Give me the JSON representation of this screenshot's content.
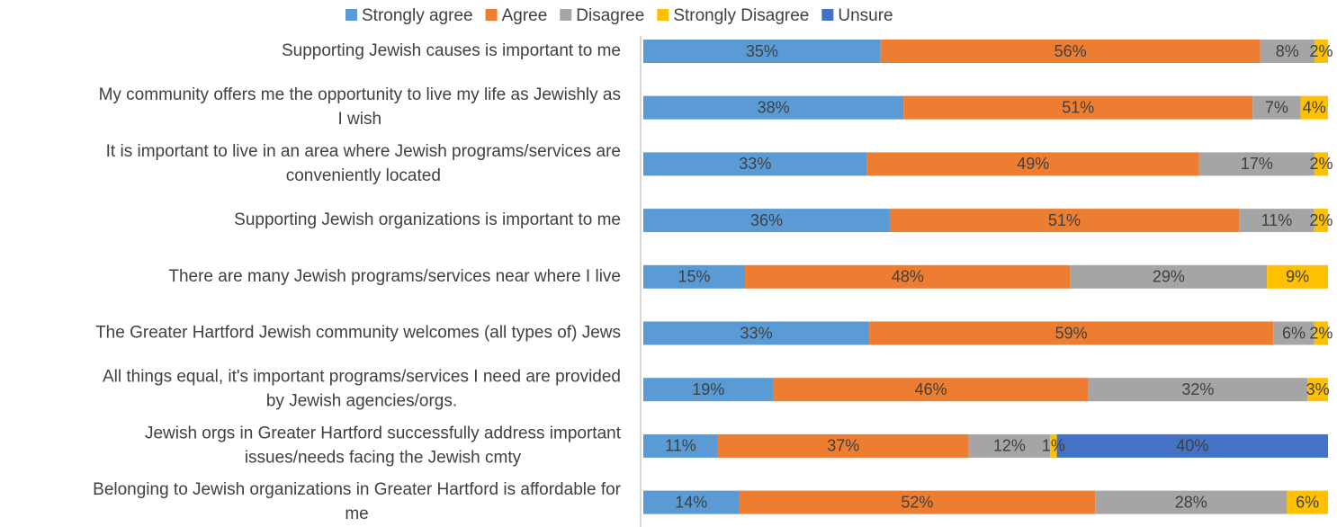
{
  "chart_data": {
    "type": "bar",
    "orientation": "horizontal",
    "stacked": true,
    "percent_stacked": true,
    "grid": false,
    "legend_position": "top",
    "categories": [
      [
        "Supporting Jewish causes is important to me"
      ],
      [
        "My community offers me the opportunity to live my life as Jewishly as",
        "I wish"
      ],
      [
        "It is important to live in an area where Jewish programs/services are",
        "conveniently located"
      ],
      [
        "Supporting Jewish organizations is important to me"
      ],
      [
        "There are many Jewish programs/services near where I live"
      ],
      [
        "The Greater Hartford Jewish community welcomes (all types of) Jews"
      ],
      [
        "All things equal, it's important programs/services I need are provided",
        "by Jewish agencies/orgs."
      ],
      [
        "Jewish orgs in Greater Hartford successfully address important",
        "issues/needs facing the Jewish cmty"
      ],
      [
        "Belonging to Jewish organizations in Greater Hartford is affordable for",
        "me"
      ]
    ],
    "series": [
      {
        "name": "Strongly agree",
        "color": "#5B9BD5",
        "values": [
          35,
          38,
          33,
          36,
          15,
          33,
          19,
          11,
          14
        ]
      },
      {
        "name": "Agree",
        "color": "#ED7D31",
        "values": [
          56,
          51,
          49,
          51,
          48,
          59,
          46,
          37,
          52
        ]
      },
      {
        "name": "Disagree",
        "color": "#A5A5A5",
        "values": [
          8,
          7,
          17,
          11,
          29,
          6,
          32,
          12,
          28
        ]
      },
      {
        "name": "Strongly Disagree",
        "color": "#FFC000",
        "values": [
          2,
          4,
          2,
          2,
          9,
          2,
          3,
          1,
          6
        ]
      },
      {
        "name": "Unsure",
        "color": "#4472C4",
        "values": [
          0,
          0,
          0,
          0,
          0,
          0,
          0,
          40,
          0
        ]
      }
    ],
    "value_suffix": "%"
  }
}
